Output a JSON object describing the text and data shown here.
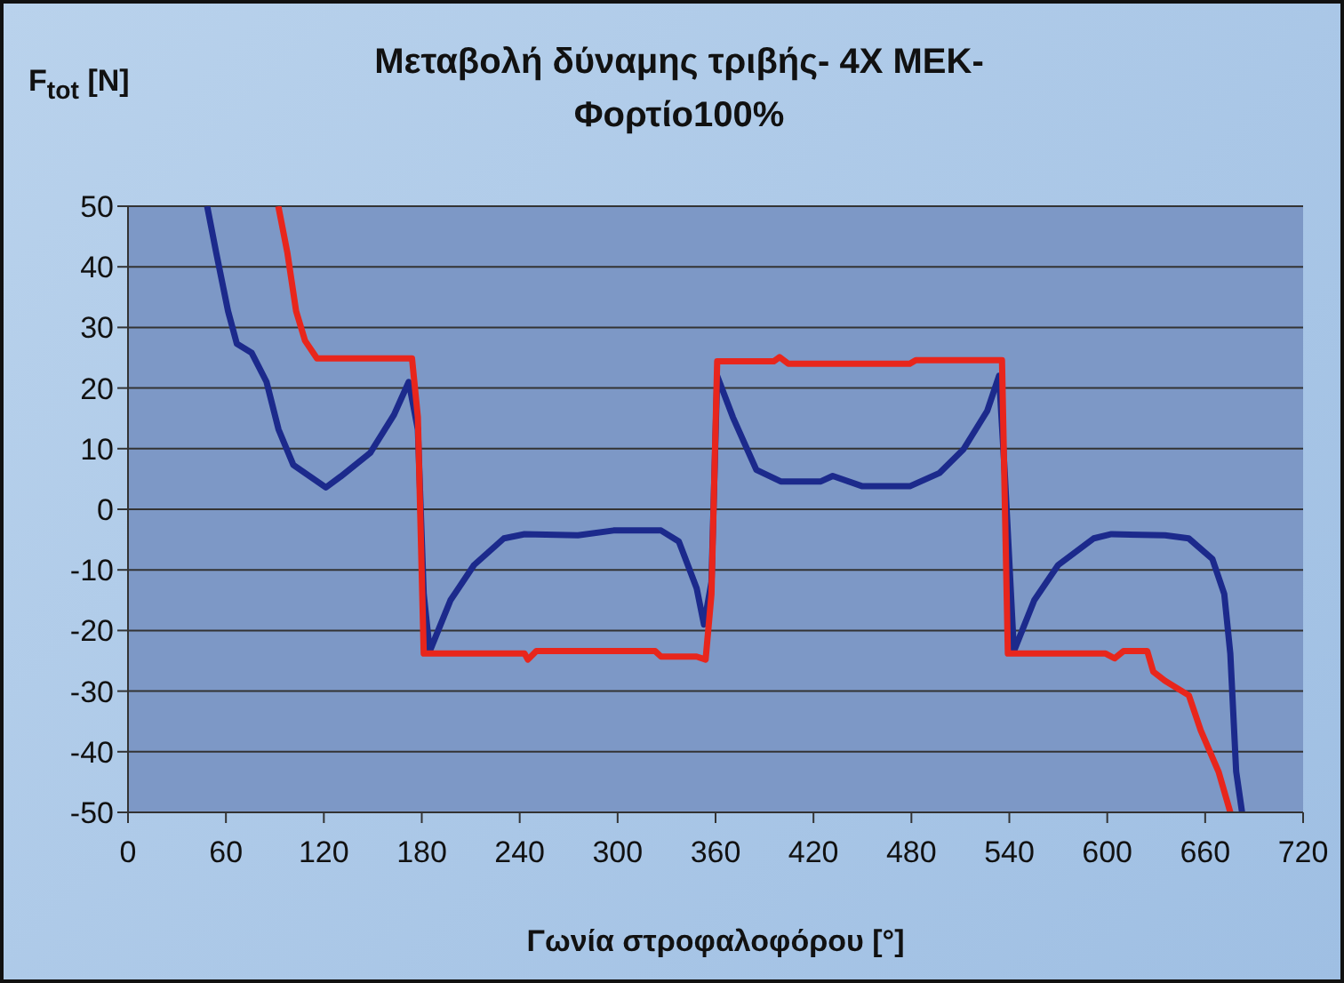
{
  "chart_data": {
    "type": "line",
    "title": "Μεταβολή δύναμης τριβής- 4X MEK-\nΦορτίο100%",
    "xlabel": "Γωνία στροφαλοφόρου [°]",
    "ylabel": "F$_{tot}$ [N]",
    "xlim": [
      0,
      720
    ],
    "xticks": [
      0,
      60,
      120,
      180,
      240,
      300,
      360,
      420,
      480,
      540,
      600,
      660,
      720
    ],
    "ylim": [
      -50,
      50
    ],
    "yticks": [
      -50,
      -40,
      -30,
      -20,
      -10,
      0,
      10,
      20,
      30,
      40,
      50
    ],
    "grid": "y",
    "line_style": "solid",
    "marker": "none",
    "series": [
      {
        "color": "#1c2a8c",
        "x": [
          48.5,
          54,
          61.3,
          66.7,
          75.8,
          84.9,
          92.2,
          101.3,
          121.2,
          130.3,
          148.4,
          163,
          172,
          177.6,
          181.2,
          184.9,
          197.6,
          212,
          230.3,
          243,
          275.7,
          297.5,
          326.6,
          337.5,
          348.4,
          352.9,
          357.5,
          361,
          370.6,
          385,
          399.9,
          424.5,
          431.8,
          450,
          479,
          497.3,
          511.9,
          526.4,
          533.7,
          537.3,
          542.8,
          555.3,
          569.9,
          591.7,
          602.6,
          635.4,
          649.9,
          664.4,
          671.7,
          675.4,
          679,
          682.6
        ],
        "values": [
          50,
          42.4,
          32.7,
          27.3,
          25.8,
          21,
          13.2,
          7.3,
          3.6,
          5.4,
          9.3,
          15.6,
          21,
          13.2,
          -14,
          -23.4,
          -15,
          -9.2,
          -4.8,
          -4.1,
          -4.3,
          -3.5,
          -3.5,
          -5.3,
          -13,
          -19,
          -12,
          22,
          15.2,
          6.5,
          4.6,
          4.6,
          5.5,
          3.8,
          3.8,
          6,
          9.9,
          16.2,
          22,
          5.5,
          -23.4,
          -15,
          -9.2,
          -4.8,
          -4.1,
          -4.3,
          -4.8,
          -8.2,
          -14,
          -23.8,
          -43.3,
          -50
        ]
      },
      {
        "color": "#e8261c",
        "x": [
          92.1,
          97.6,
          103,
          108.5,
          115.8,
          174,
          177.6,
          181.2,
          243,
          245,
          250.2,
          323,
          326.6,
          348.4,
          353.9,
          357.5,
          361,
          395.6,
          399.2,
          404.6,
          479,
          482.7,
          535.5,
          539.1,
          599,
          604.5,
          610,
          624.5,
          628.2,
          635.4,
          650,
          657.3,
          668.2,
          675.4
        ],
        "values": [
          50,
          42.4,
          32.7,
          27.8,
          24.9,
          24.9,
          15.2,
          -23.8,
          -23.8,
          -24.8,
          -23.4,
          -23.4,
          -24.3,
          -24.3,
          -24.8,
          -14,
          24.4,
          24.4,
          25.1,
          24,
          24,
          24.6,
          24.6,
          -23.8,
          -23.8,
          -24.6,
          -23.4,
          -23.4,
          -26.8,
          -28.3,
          -30.7,
          -36.5,
          -43.3,
          -50
        ]
      }
    ]
  }
}
